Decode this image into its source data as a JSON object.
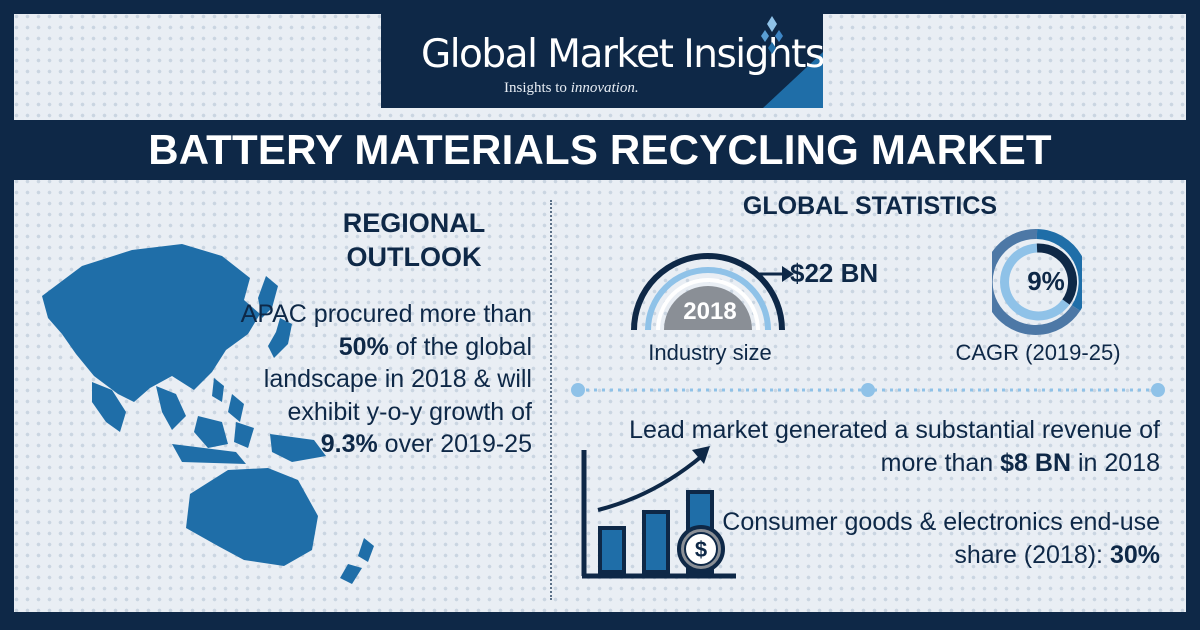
{
  "brand": {
    "name": "Global Market Insights",
    "tagline_plain": "Insights to ",
    "tagline_emphasis": "innovation."
  },
  "title": "BATTERY MATERIALS RECYCLING MARKET",
  "regional": {
    "heading": "REGIONAL OUTLOOK",
    "text_1": "APAC procured more than ",
    "bold_1": "50%",
    "text_2": " of the global landscape in 2018 & will exhibit y-o-y growth of ",
    "bold_2": "9.3%",
    "text_3": " over 2019-25"
  },
  "global": {
    "heading": "GLOBAL STATISTICS",
    "industry_year": "2018",
    "industry_value": "$22 BN",
    "industry_label": "Industry size",
    "cagr_value": "9%",
    "cagr_fraction": 0.09,
    "cagr_label": "CAGR (2019-25)",
    "lead_text_1": "Lead market generated a substantial revenue of more than ",
    "lead_bold": "$8 BN",
    "lead_text_2": " in 2018",
    "consumer_text": "Consumer goods & electronics end-use share (2018): ",
    "consumer_bold": "30%"
  },
  "colors": {
    "navy": "#0e2847",
    "blue": "#1f6ea8",
    "light_blue": "#8fc2e8",
    "background": "#e9eef4",
    "gray": "#8a8f96"
  },
  "icons": [
    "asia-pacific-map-icon",
    "growth-chart-icon",
    "dollar-coin-icon",
    "gauge-icon",
    "donut-icon",
    "diamond-logo-icon"
  ]
}
